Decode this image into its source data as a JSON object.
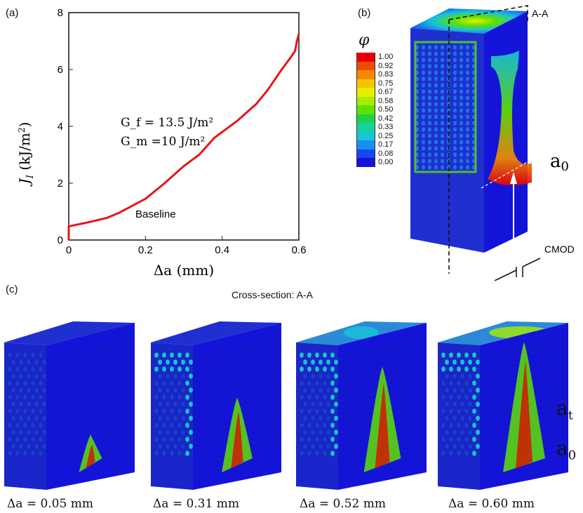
{
  "panels": {
    "a": {
      "label": "(a)"
    },
    "b": {
      "label": "(b)"
    },
    "c": {
      "label": "(c)"
    }
  },
  "chart_data": {
    "type": "line",
    "ylabel": "J_I (kJ/m²)",
    "xlabel": "Δa (mm)",
    "xlim": [
      0,
      0.6
    ],
    "ylim": [
      0,
      8
    ],
    "x_ticks": [
      "0",
      "0.2",
      "0.4",
      "0.6"
    ],
    "y_ticks": [
      "0",
      "2",
      "4",
      "6",
      "8"
    ],
    "annotations": {
      "gf": "G_f = 13.5 J/m²",
      "gm": "G_m =10 J/m²",
      "baseline": "Baseline"
    },
    "series": [
      {
        "name": "Baseline",
        "color": "#e8141b",
        "x": [
          0,
          0.0,
          0.05,
          0.1,
          0.13,
          0.2,
          0.25,
          0.3,
          0.34,
          0.38,
          0.44,
          0.49,
          0.52,
          0.55,
          0.58,
          0.59,
          0.595,
          0.6
        ],
        "y": [
          0,
          0.48,
          0.62,
          0.78,
          0.95,
          1.45,
          2.0,
          2.6,
          3.0,
          3.6,
          4.2,
          4.8,
          5.3,
          5.9,
          6.45,
          6.65,
          7.0,
          7.25
        ]
      }
    ]
  },
  "contour_legend": {
    "symbol": "φ",
    "levels": [
      "1.00",
      "0.92",
      "0.83",
      "0.75",
      "0.67",
      "0.58",
      "0.50",
      "0.42",
      "0.33",
      "0.25",
      "0.17",
      "0.08",
      "0.00"
    ],
    "colors": [
      "#e60000",
      "#ee4a00",
      "#f58a00",
      "#f5c400",
      "#e4ef00",
      "#a8ec00",
      "#5fe000",
      "#1fd24a",
      "#17d39a",
      "#19c3d8",
      "#1a8ef0",
      "#1547f2",
      "#1414d9"
    ]
  },
  "model_labels": {
    "section": "A-A",
    "a0": "a",
    "a0_sub": "0",
    "cmod": "CMOD",
    "at": "a",
    "at_sub": "t"
  },
  "cross_section": {
    "title": "Cross-section: A-A",
    "captions": [
      "Δa = 0.05 mm",
      "Δa = 0.31 mm",
      "Δa = 0.52 mm",
      "Δa = 0.60 mm"
    ]
  }
}
